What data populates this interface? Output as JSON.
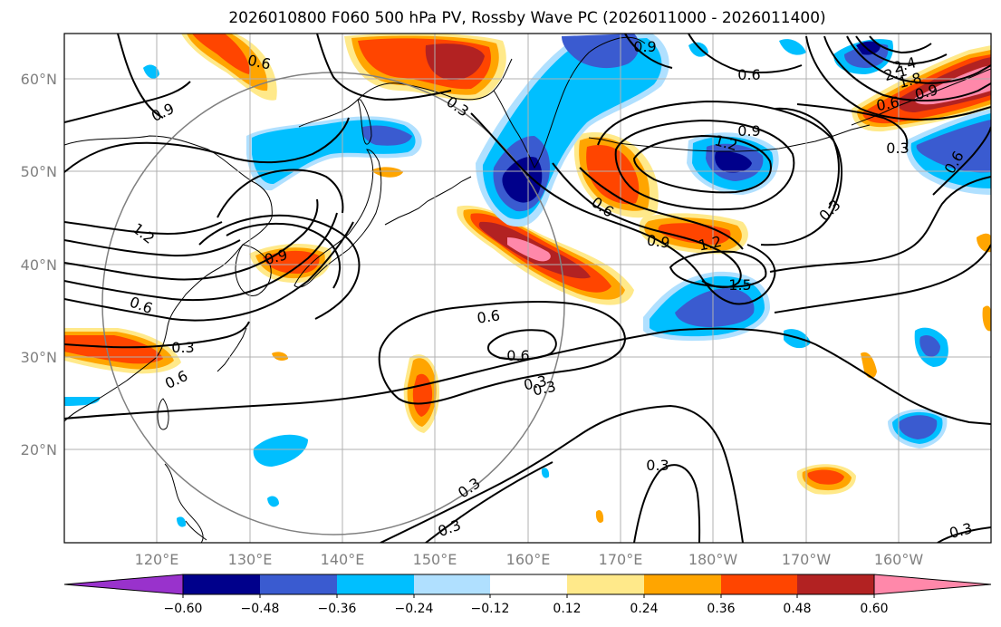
{
  "title": "2026010800 F060 500 hPa PV, Rossby Wave PC (2026011000 - 2026011400)",
  "map": {
    "lon_labels": [
      "120°E",
      "130°E",
      "140°E",
      "150°E",
      "160°E",
      "170°E",
      "180°W",
      "170°W",
      "160°W"
    ],
    "lat_labels": [
      "60°N",
      "50°N",
      "40°N",
      "30°N",
      "20°N"
    ]
  },
  "colorbar": {
    "ticks": [
      "−0.60",
      "−0.48",
      "−0.36",
      "−0.24",
      "−0.12",
      "0.12",
      "0.24",
      "0.36",
      "0.48",
      "0.60"
    ],
    "colors": [
      "#9932cc",
      "#00008b",
      "#3a5bd0",
      "#00bfff",
      "#b0e0ff",
      "#ffffff",
      "#ffe98a",
      "#ffa500",
      "#ff4500",
      "#b22222",
      "#ff88aa",
      "#ffc0cb"
    ]
  },
  "contour_labels": [
    "0.6",
    "0.9",
    "0.3",
    "0.9",
    "0.6",
    "0.6",
    "1.2",
    "0.3",
    "0.6",
    "0.9",
    "1.2",
    "2.4",
    "2.1",
    "1.8",
    "0.9",
    "0.6",
    "0.3",
    "0.6",
    "0.3",
    "0.9",
    "1.2",
    "1.5",
    "0.6",
    "0.9",
    "0.3",
    "0.3",
    "0.3",
    "0.3",
    "0.3",
    "0.6",
    "0.3",
    "0.6"
  ]
}
